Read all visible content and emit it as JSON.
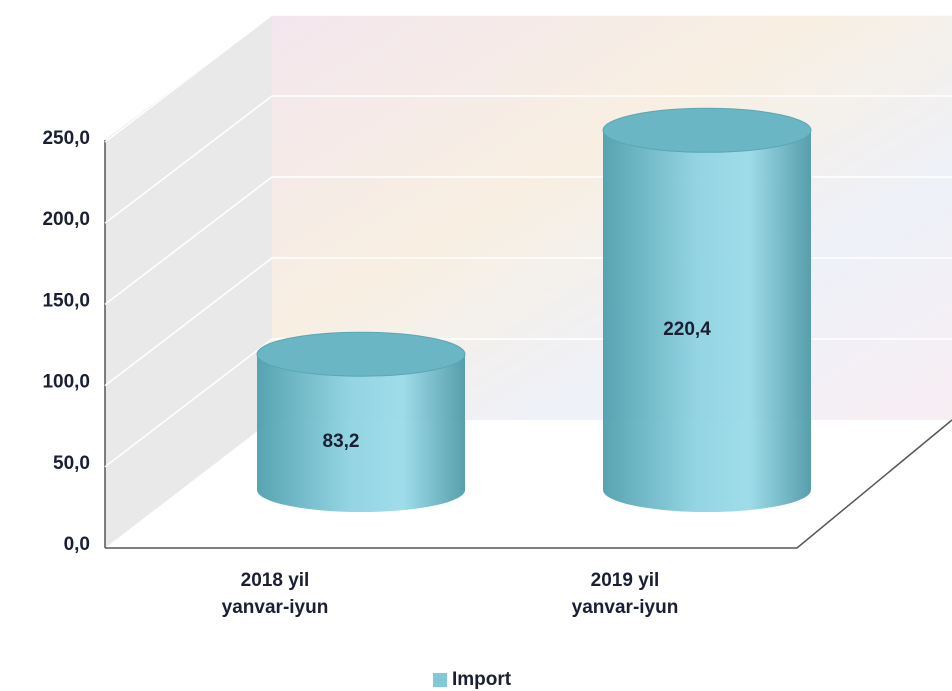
{
  "chart_data": {
    "type": "bar3d",
    "categories": [
      [
        "2018 yil",
        "yanvar-iyun"
      ],
      [
        "2019 yil",
        "yanvar-iyun"
      ]
    ],
    "series": [
      {
        "name": "Import",
        "color": "#7ec8d8",
        "values": [
          83.2,
          220.4
        ],
        "value_labels": [
          "83,2",
          "220,4"
        ]
      }
    ],
    "ylim": [
      0,
      250
    ],
    "yticks": [
      {
        "value": 0,
        "label": "0,0"
      },
      {
        "value": 50,
        "label": "50,0"
      },
      {
        "value": 100,
        "label": "100,0"
      },
      {
        "value": 150,
        "label": "150,0"
      },
      {
        "value": 200,
        "label": "200,0"
      },
      {
        "value": 250,
        "label": "250,0"
      }
    ],
    "grid": true,
    "legend": "bottom"
  }
}
